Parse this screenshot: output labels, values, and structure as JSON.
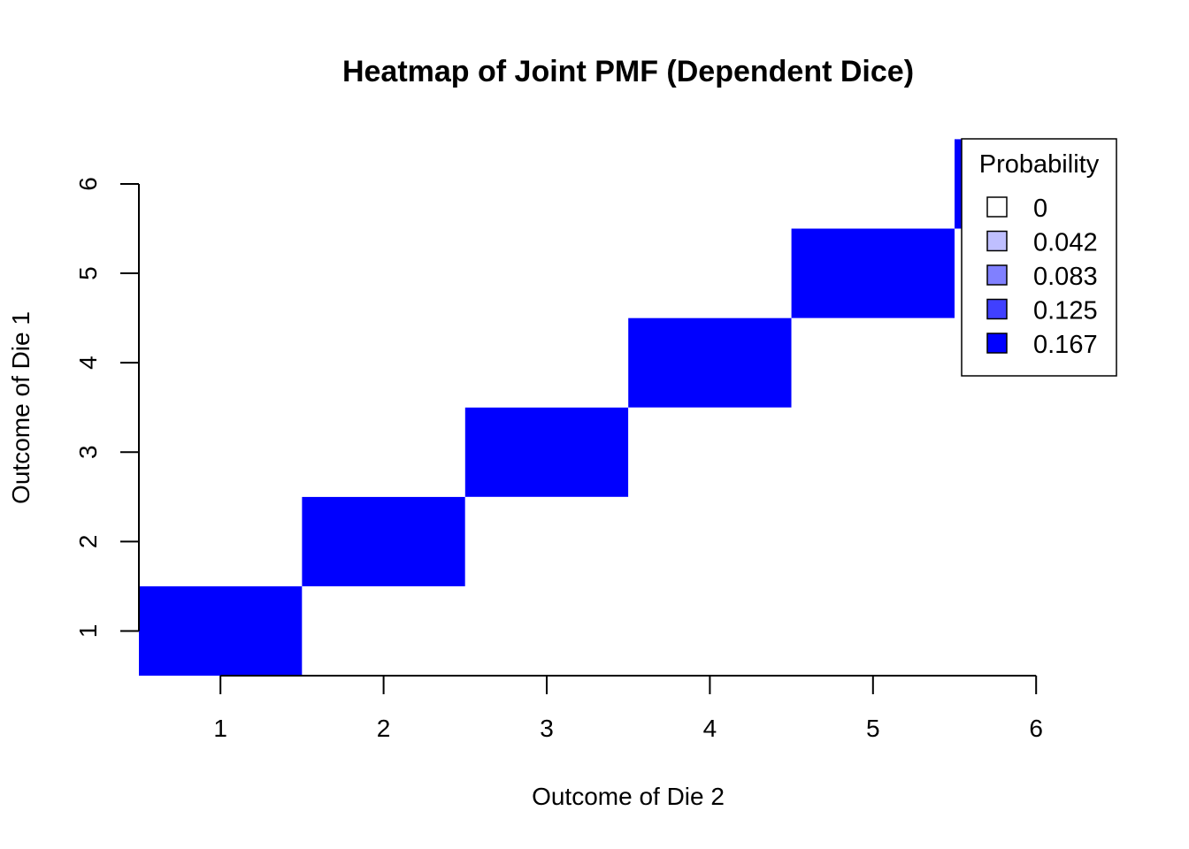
{
  "chart_data": {
    "type": "heatmap",
    "title": "Heatmap of Joint PMF (Dependent Dice)",
    "xlabel": "Outcome of Die 2",
    "ylabel": "Outcome of Die 1",
    "x": [
      1,
      2,
      3,
      4,
      5,
      6
    ],
    "y": [
      1,
      2,
      3,
      4,
      5,
      6
    ],
    "x_ticks": [
      "1",
      "2",
      "3",
      "4",
      "5",
      "6"
    ],
    "y_ticks": [
      "1",
      "2",
      "3",
      "4",
      "5",
      "6"
    ],
    "xlim": [
      0.5,
      6.0
    ],
    "ylim": [
      0.5,
      6.5
    ],
    "values": [
      [
        0.167,
        0,
        0,
        0,
        0,
        0
      ],
      [
        0,
        0.167,
        0,
        0,
        0,
        0
      ],
      [
        0,
        0,
        0.167,
        0,
        0,
        0
      ],
      [
        0,
        0,
        0,
        0.167,
        0,
        0
      ],
      [
        0,
        0,
        0,
        0,
        0.167,
        0
      ],
      [
        0,
        0,
        0,
        0,
        0,
        0.167
      ]
    ],
    "color_low": "#ffffff",
    "color_high": "#0000ff",
    "legend": {
      "title": "Probability",
      "position": "top-right",
      "entries": [
        {
          "label": "0",
          "color": "#ffffff"
        },
        {
          "label": "0.042",
          "color": "#bfbfff"
        },
        {
          "label": "0.083",
          "color": "#8080ff"
        },
        {
          "label": "0.125",
          "color": "#4040ff"
        },
        {
          "label": "0.167",
          "color": "#0000ff"
        }
      ]
    },
    "grid": false
  }
}
